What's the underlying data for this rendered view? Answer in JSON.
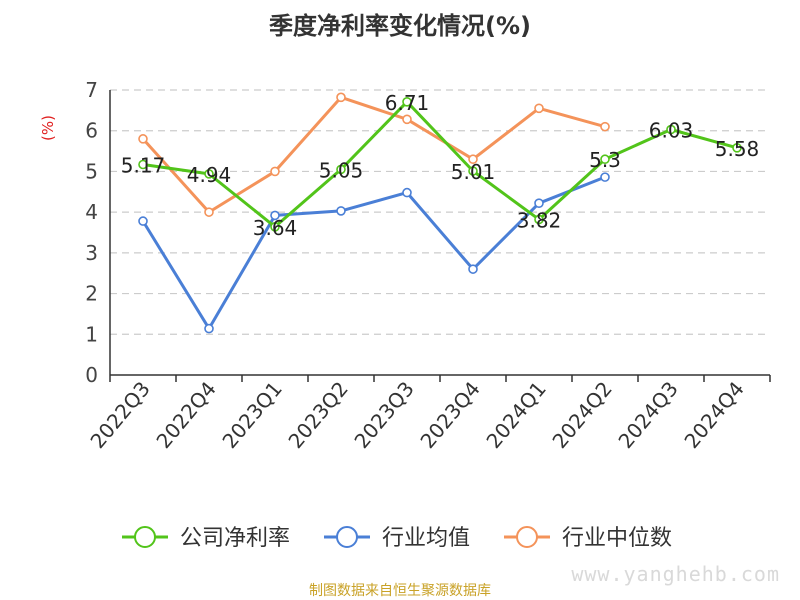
{
  "chart_data": {
    "type": "line",
    "title": "季度净利率变化情况(%)",
    "ylabel": "(%)",
    "xlabel": "",
    "ylim": [
      0,
      7
    ],
    "yticks": [
      0,
      1,
      2,
      3,
      4,
      5,
      6,
      7
    ],
    "grid": true,
    "legend_position": "bottom",
    "categories": [
      "2022Q3",
      "2022Q4",
      "2023Q1",
      "2023Q2",
      "2023Q3",
      "2023Q4",
      "2024Q1",
      "2024Q2",
      "2024Q3",
      "2024Q4"
    ],
    "series": [
      {
        "name": "公司净利率",
        "color": "#52c41a",
        "labeled": true,
        "values": [
          5.17,
          4.94,
          3.64,
          5.05,
          6.71,
          5.01,
          3.82,
          5.3,
          6.03,
          5.58
        ]
      },
      {
        "name": "行业均值",
        "color": "#4a7fd6",
        "labeled": false,
        "values": [
          3.78,
          1.14,
          3.92,
          4.03,
          4.48,
          2.6,
          4.22,
          4.86,
          null,
          null
        ]
      },
      {
        "name": "行业中位数",
        "color": "#f4935a",
        "labeled": false,
        "values": [
          5.8,
          4.0,
          5.0,
          6.82,
          6.28,
          5.3,
          6.55,
          6.1,
          null,
          null
        ]
      }
    ]
  },
  "footer": {
    "watermark": "www.yanghehb.com",
    "source": "制图数据来自恒生聚源数据库"
  }
}
